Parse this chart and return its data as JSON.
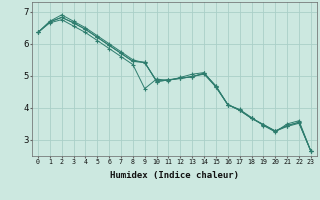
{
  "xlabel": "Humidex (Indice chaleur)",
  "bg_color": "#cce8e0",
  "line_color": "#2e7d6e",
  "grid_color": "#aacfc8",
  "xlim": [
    -0.5,
    23.5
  ],
  "ylim": [
    2.5,
    7.3
  ],
  "yticks": [
    3,
    4,
    5,
    6,
    7
  ],
  "xticks": [
    0,
    1,
    2,
    3,
    4,
    5,
    6,
    7,
    8,
    9,
    10,
    11,
    12,
    13,
    14,
    15,
    16,
    17,
    18,
    19,
    20,
    21,
    22,
    23
  ],
  "series": [
    [
      6.35,
      6.65,
      6.75,
      6.55,
      6.35,
      6.1,
      5.85,
      5.6,
      5.35,
      4.6,
      4.9,
      4.85,
      4.95,
      5.05,
      5.1,
      4.65,
      4.1,
      3.95,
      3.7,
      3.45,
      3.25,
      3.5,
      3.6,
      2.65
    ],
    [
      6.35,
      6.7,
      6.9,
      6.7,
      6.5,
      6.25,
      6.0,
      5.75,
      5.5,
      5.4,
      4.85,
      4.88,
      4.92,
      4.98,
      5.05,
      4.65,
      4.1,
      3.92,
      3.67,
      3.47,
      3.27,
      3.42,
      3.52,
      2.65
    ],
    [
      6.35,
      6.68,
      6.82,
      6.65,
      6.45,
      6.2,
      5.95,
      5.7,
      5.45,
      5.42,
      4.82,
      4.87,
      4.92,
      4.97,
      5.08,
      4.68,
      4.1,
      3.93,
      3.68,
      3.48,
      3.28,
      3.45,
      3.55,
      2.65
    ],
    [
      6.35,
      6.68,
      6.82,
      6.65,
      6.45,
      6.2,
      5.95,
      5.7,
      5.45,
      5.42,
      4.82,
      4.87,
      4.92,
      4.97,
      5.08,
      4.68,
      4.1,
      3.93,
      3.68,
      3.48,
      3.28,
      3.45,
      3.55,
      2.65
    ]
  ]
}
